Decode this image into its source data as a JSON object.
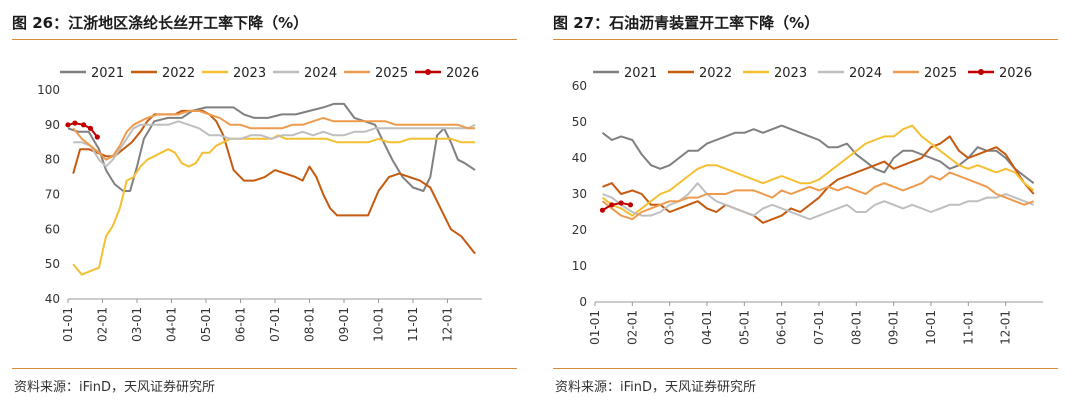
{
  "colors": {
    "2021": "#808080",
    "2022": "#c55a11",
    "2023": "#f4c033",
    "2024": "#bfbfbf",
    "2025": "#ed9b4f",
    "2026": "#c00000",
    "accent": "#d98c3a"
  },
  "charts": [
    {
      "title": "图 26：江浙地区涤纶长丝开工率下降（%）",
      "source": "资料来源：iFinD，天风证券研究所"
    },
    {
      "title": "图 27：石油沥青装置开工率下降（%）",
      "source": "资料来源：iFinD，天风证券研究所"
    }
  ],
  "chart_data": [
    {
      "type": "line",
      "title": "图 26：江浙地区涤纶长丝开工率下降（%）",
      "xlabel": "",
      "ylabel": "%",
      "ylim": [
        40,
        100
      ],
      "yticks": [
        40,
        50,
        60,
        70,
        80,
        90,
        100
      ],
      "xlim": [
        0,
        12
      ],
      "categories": [
        "01-01",
        "02-01",
        "03-01",
        "04-01",
        "05-01",
        "06-01",
        "07-01",
        "08-01",
        "09-01",
        "10-01",
        "11-01",
        "12-01"
      ],
      "legend": "top",
      "series": [
        {
          "name": "2021",
          "x": [
            0,
            0.3,
            0.6,
            0.9,
            1.1,
            1.35,
            1.6,
            1.8,
            2.0,
            2.2,
            2.5,
            2.9,
            3.3,
            3.6,
            4.0,
            4.4,
            4.8,
            5.1,
            5.4,
            5.8,
            6.2,
            6.6,
            7.0,
            7.4,
            7.7,
            8.0,
            8.3,
            8.6,
            8.9,
            9.1,
            9.4,
            9.7,
            10.0,
            10.3,
            10.5,
            10.7,
            10.9,
            11.1,
            11.3,
            11.5,
            11.8
          ],
          "values": [
            89,
            88,
            88,
            83,
            77,
            73,
            71,
            71,
            78,
            86,
            91,
            92,
            92,
            94,
            95,
            95,
            95,
            93,
            92,
            92,
            93,
            93,
            94,
            95,
            96,
            96,
            92,
            91,
            90,
            86,
            80,
            75,
            72,
            71,
            75,
            87,
            89,
            85,
            80,
            79,
            77
          ]
        },
        {
          "name": "2022",
          "x": [
            0.15,
            0.35,
            0.6,
            0.85,
            1.1,
            1.35,
            1.6,
            1.85,
            2.1,
            2.3,
            2.5,
            2.8,
            3.1,
            3.3,
            3.5,
            3.7,
            3.9,
            4.1,
            4.3,
            4.5,
            4.8,
            5.1,
            5.4,
            5.7,
            6.0,
            6.3,
            6.6,
            6.8,
            7.0,
            7.2,
            7.4,
            7.6,
            7.8,
            8.1,
            8.4,
            8.7,
            9.0,
            9.3,
            9.6,
            9.9,
            10.2,
            10.5,
            10.8,
            11.1,
            11.4,
            11.8
          ],
          "values": [
            76,
            83,
            83,
            82,
            81,
            81,
            83,
            85,
            88,
            91,
            93,
            93,
            93,
            94,
            94,
            94,
            94,
            93,
            91,
            87,
            77,
            74,
            74,
            75,
            77,
            76,
            75,
            74,
            78,
            75,
            70,
            66,
            64,
            64,
            64,
            64,
            71,
            75,
            76,
            75,
            74,
            72,
            66,
            60,
            58,
            53
          ]
        },
        {
          "name": "2023",
          "x": [
            0.15,
            0.4,
            0.65,
            0.9,
            1.1,
            1.3,
            1.5,
            1.7,
            1.9,
            2.1,
            2.3,
            2.5,
            2.7,
            2.9,
            3.1,
            3.3,
            3.5,
            3.7,
            3.9,
            4.1,
            4.3,
            4.5,
            4.7,
            4.9,
            5.1,
            5.3,
            5.5,
            5.7,
            5.9,
            6.1,
            6.3,
            6.6,
            6.9,
            7.2,
            7.5,
            7.8,
            8.1,
            8.4,
            8.7,
            9.0,
            9.3,
            9.6,
            9.9,
            10.2,
            10.5,
            10.8,
            11.1,
            11.4,
            11.8
          ],
          "values": [
            50,
            47,
            48,
            49,
            58,
            61,
            66,
            74,
            75,
            78,
            80,
            81,
            82,
            83,
            82,
            79,
            78,
            79,
            82,
            82,
            84,
            85,
            86,
            86,
            86,
            86,
            86,
            86,
            86,
            87,
            86,
            86,
            86,
            86,
            86,
            85,
            85,
            85,
            85,
            86,
            85,
            85,
            86,
            86,
            86,
            86,
            86,
            85,
            85
          ]
        },
        {
          "name": "2024",
          "x": [
            0.15,
            0.4,
            0.65,
            0.9,
            1.1,
            1.3,
            1.5,
            1.7,
            1.9,
            2.1,
            2.3,
            2.6,
            2.9,
            3.2,
            3.5,
            3.8,
            4.1,
            4.4,
            4.7,
            5.0,
            5.3,
            5.6,
            5.9,
            6.2,
            6.5,
            6.8,
            7.1,
            7.4,
            7.7,
            8.0,
            8.3,
            8.6,
            8.9,
            9.2,
            9.5,
            9.8,
            10.1,
            10.4,
            10.7,
            11.0,
            11.3,
            11.6,
            11.8
          ],
          "values": [
            85,
            85,
            84,
            80,
            78,
            80,
            83,
            86,
            89,
            90,
            90,
            90,
            90,
            91,
            90,
            89,
            87,
            87,
            86,
            86,
            87,
            87,
            86,
            87,
            87,
            88,
            87,
            88,
            87,
            87,
            88,
            88,
            89,
            89,
            89,
            89,
            89,
            89,
            89,
            89,
            89,
            89,
            90
          ]
        },
        {
          "name": "2025",
          "x": [
            0.15,
            0.4,
            0.65,
            0.9,
            1.1,
            1.3,
            1.5,
            1.7,
            1.9,
            2.1,
            2.3,
            2.6,
            2.9,
            3.2,
            3.5,
            3.8,
            4.1,
            4.4,
            4.7,
            5.0,
            5.3,
            5.6,
            5.9,
            6.2,
            6.5,
            6.8,
            7.1,
            7.4,
            7.7,
            8.0,
            8.3,
            8.6,
            8.9,
            9.2,
            9.5,
            9.8,
            10.1,
            10.4,
            10.7,
            11.0,
            11.3,
            11.6,
            11.8
          ],
          "values": [
            89,
            86,
            84,
            82,
            80,
            81,
            84,
            88,
            90,
            91,
            92,
            93,
            93,
            93,
            94,
            94,
            93,
            92,
            90,
            90,
            89,
            89,
            89,
            89,
            90,
            90,
            91,
            92,
            91,
            91,
            91,
            91,
            91,
            91,
            90,
            90,
            90,
            90,
            90,
            90,
            90,
            89,
            89
          ]
        },
        {
          "name": "2026",
          "x": [
            0.0,
            0.2,
            0.45,
            0.65,
            0.85
          ],
          "values": [
            90,
            90.5,
            90,
            89,
            86.5
          ],
          "markers": true
        }
      ]
    },
    {
      "type": "line",
      "title": "图 27：石油沥青装置开工率下降（%）",
      "xlabel": "",
      "ylabel": "%",
      "ylim": [
        0,
        60
      ],
      "yticks": [
        0,
        10,
        20,
        30,
        40,
        50,
        60
      ],
      "xlim": [
        0,
        12
      ],
      "categories": [
        "01-01",
        "02-01",
        "03-01",
        "04-01",
        "05-01",
        "06-01",
        "07-01",
        "08-01",
        "09-01",
        "10-01",
        "11-01",
        "12-01"
      ],
      "legend": "top",
      "series": [
        {
          "name": "2021",
          "x": [
            0.2,
            0.45,
            0.7,
            1.0,
            1.25,
            1.5,
            1.75,
            2.0,
            2.25,
            2.5,
            2.75,
            3.0,
            3.25,
            3.5,
            3.75,
            4.0,
            4.25,
            4.5,
            4.75,
            5.0,
            5.25,
            5.5,
            5.75,
            6.0,
            6.25,
            6.5,
            6.75,
            7.0,
            7.25,
            7.5,
            7.75,
            8.0,
            8.25,
            8.5,
            8.75,
            9.0,
            9.25,
            9.5,
            9.75,
            10.0,
            10.25,
            10.5,
            10.75,
            11.0,
            11.25,
            11.5,
            11.75
          ],
          "values": [
            47,
            45,
            46,
            45,
            41,
            38,
            37,
            38,
            40,
            42,
            42,
            44,
            45,
            46,
            47,
            47,
            48,
            47,
            48,
            49,
            48,
            47,
            46,
            45,
            43,
            43,
            44,
            41,
            39,
            37,
            36,
            40,
            42,
            42,
            41,
            40,
            39,
            37,
            38,
            40,
            43,
            42,
            42,
            40,
            37,
            35,
            33
          ]
        },
        {
          "name": "2022",
          "x": [
            0.2,
            0.45,
            0.7,
            1.0,
            1.25,
            1.5,
            1.75,
            2.0,
            2.25,
            2.5,
            2.75,
            3.0,
            3.25,
            3.5,
            3.75,
            4.0,
            4.25,
            4.5,
            4.75,
            5.0,
            5.25,
            5.5,
            5.75,
            6.0,
            6.25,
            6.5,
            6.75,
            7.0,
            7.25,
            7.5,
            7.75,
            8.0,
            8.25,
            8.5,
            8.75,
            9.0,
            9.25,
            9.5,
            9.75,
            10.0,
            10.25,
            10.5,
            10.75,
            11.0,
            11.25,
            11.5,
            11.75
          ],
          "values": [
            32,
            33,
            30,
            31,
            30,
            27,
            27,
            25,
            26,
            27,
            28,
            26,
            25,
            27,
            26,
            25,
            24,
            22,
            23,
            24,
            26,
            25,
            27,
            29,
            32,
            34,
            35,
            36,
            37,
            38,
            39,
            37,
            38,
            39,
            40,
            43,
            44,
            46,
            42,
            40,
            41,
            42,
            43,
            41,
            37,
            33,
            30
          ]
        },
        {
          "name": "2023",
          "x": [
            0.2,
            0.45,
            0.7,
            1.0,
            1.25,
            1.5,
            1.75,
            2.0,
            2.25,
            2.5,
            2.75,
            3.0,
            3.25,
            3.5,
            3.75,
            4.0,
            4.25,
            4.5,
            4.75,
            5.0,
            5.25,
            5.5,
            5.75,
            6.0,
            6.25,
            6.5,
            6.75,
            7.0,
            7.25,
            7.5,
            7.75,
            8.0,
            8.25,
            8.5,
            8.75,
            9.0,
            9.25,
            9.5,
            9.75,
            10.0,
            10.25,
            10.5,
            10.75,
            11.0,
            11.25,
            11.5,
            11.75
          ],
          "values": [
            29,
            27,
            26,
            24,
            26,
            28,
            30,
            31,
            33,
            35,
            37,
            38,
            38,
            37,
            36,
            35,
            34,
            33,
            34,
            35,
            34,
            33,
            33,
            34,
            36,
            38,
            40,
            42,
            44,
            45,
            46,
            46,
            48,
            49,
            46,
            44,
            42,
            40,
            38,
            37,
            38,
            37,
            36,
            37,
            36,
            33,
            31
          ]
        },
        {
          "name": "2024",
          "x": [
            0.2,
            0.45,
            0.7,
            1.0,
            1.25,
            1.5,
            1.75,
            2.0,
            2.25,
            2.5,
            2.75,
            3.0,
            3.25,
            3.5,
            3.75,
            4.0,
            4.25,
            4.5,
            4.75,
            5.0,
            5.25,
            5.5,
            5.75,
            6.0,
            6.25,
            6.5,
            6.75,
            7.0,
            7.25,
            7.5,
            7.75,
            8.0,
            8.25,
            8.5,
            8.75,
            9.0,
            9.25,
            9.5,
            9.75,
            10.0,
            10.25,
            10.5,
            10.75,
            11.0,
            11.25,
            11.5,
            11.75
          ],
          "values": [
            30,
            29,
            27,
            25,
            24,
            24,
            25,
            27,
            28,
            30,
            33,
            30,
            28,
            27,
            26,
            25,
            24,
            26,
            27,
            26,
            25,
            24,
            23,
            24,
            25,
            26,
            27,
            25,
            25,
            27,
            28,
            27,
            26,
            27,
            26,
            25,
            26,
            27,
            27,
            28,
            28,
            29,
            29,
            30,
            29,
            28,
            27
          ]
        },
        {
          "name": "2025",
          "x": [
            0.2,
            0.45,
            0.7,
            1.0,
            1.25,
            1.5,
            1.75,
            2.0,
            2.25,
            2.5,
            2.75,
            3.0,
            3.25,
            3.5,
            3.75,
            4.0,
            4.25,
            4.5,
            4.75,
            5.0,
            5.25,
            5.5,
            5.75,
            6.0,
            6.25,
            6.5,
            6.75,
            7.0,
            7.25,
            7.5,
            7.75,
            8.0,
            8.25,
            8.5,
            8.75,
            9.0,
            9.25,
            9.5,
            9.75,
            10.0,
            10.25,
            10.5,
            10.75,
            11.0,
            11.25,
            11.5,
            11.75
          ],
          "values": [
            28,
            26,
            24,
            23,
            25,
            26,
            27,
            28,
            28,
            29,
            29,
            30,
            30,
            30,
            31,
            31,
            31,
            30,
            29,
            31,
            30,
            31,
            32,
            31,
            32,
            31,
            32,
            31,
            30,
            32,
            33,
            32,
            31,
            32,
            33,
            35,
            34,
            36,
            35,
            34,
            33,
            32,
            30,
            29,
            28,
            27,
            28
          ]
        },
        {
          "name": "2026",
          "x": [
            0.2,
            0.45,
            0.7,
            0.95
          ],
          "values": [
            25.5,
            27,
            27.5,
            27
          ],
          "markers": true
        }
      ]
    }
  ]
}
